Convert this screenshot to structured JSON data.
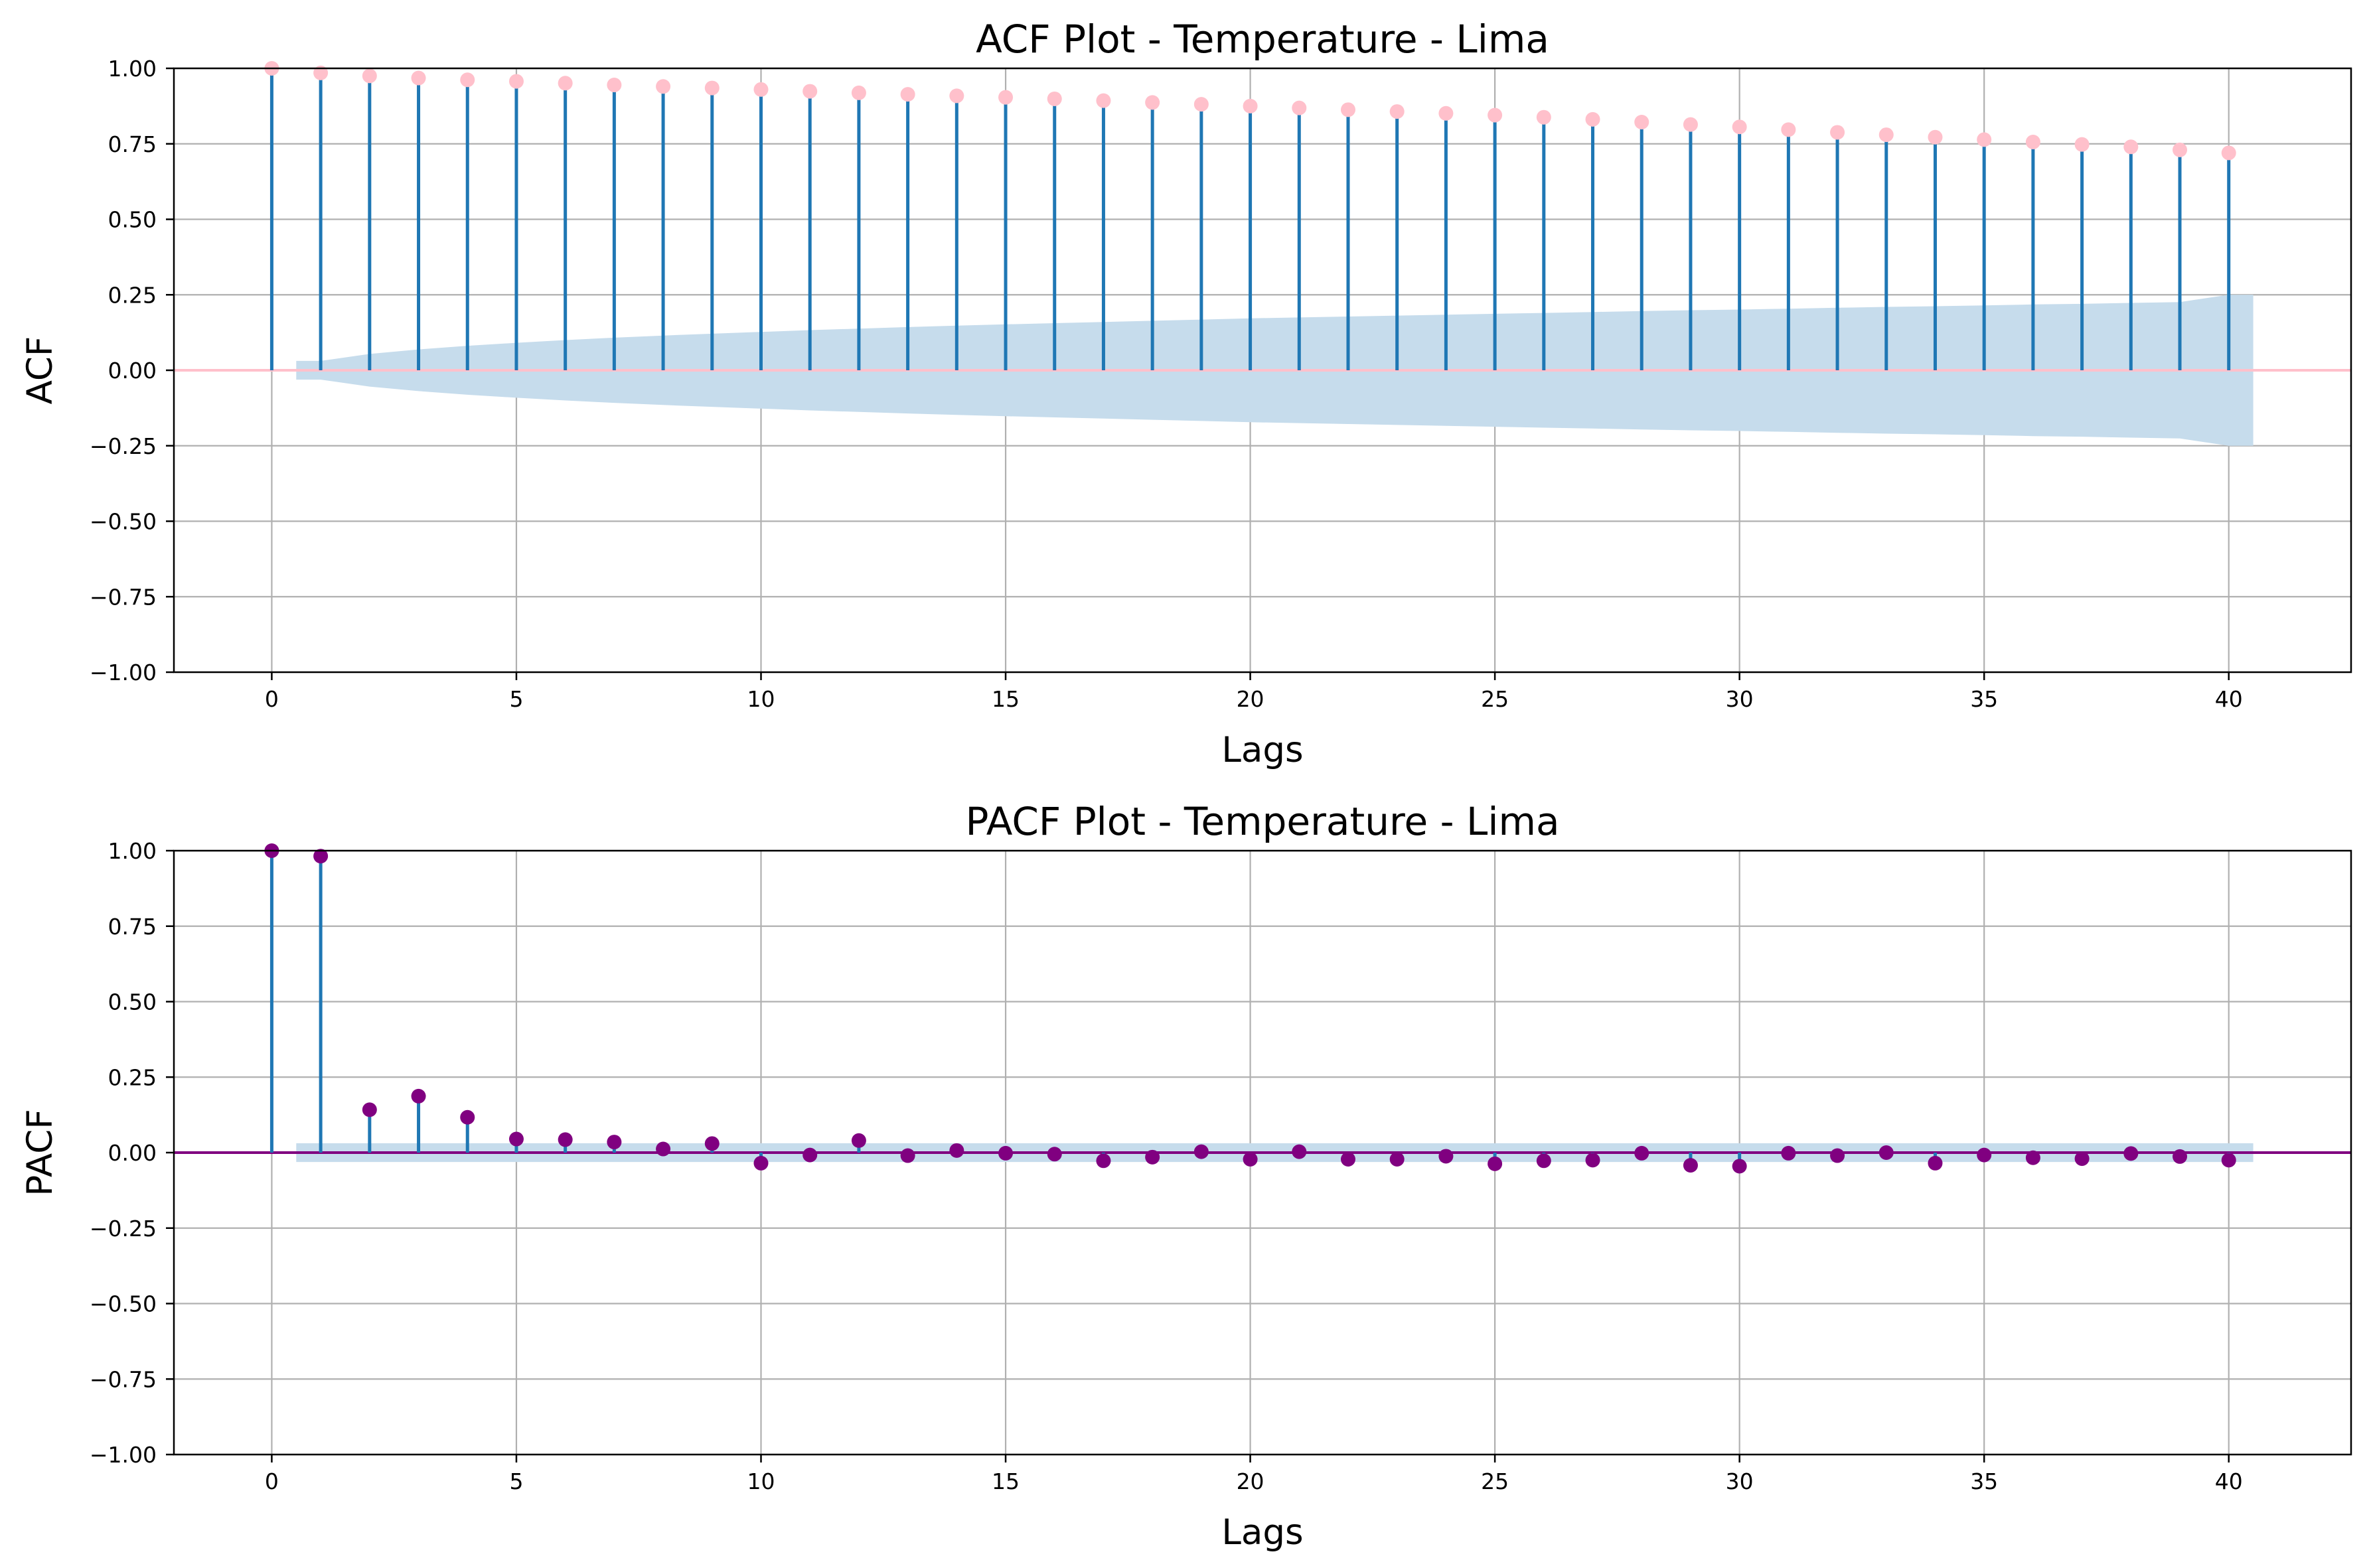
{
  "chart_data": [
    {
      "type": "stem",
      "title": "ACF Plot - Temperature - Lima",
      "xlabel": "Lags",
      "ylabel": "ACF",
      "xlim": [
        -2,
        42.5
      ],
      "ylim": [
        -1.0,
        1.0
      ],
      "xticks": [
        0,
        5,
        10,
        15,
        20,
        25,
        30,
        35,
        40
      ],
      "yticks": [
        -1.0,
        -0.75,
        -0.5,
        -0.25,
        0.0,
        0.25,
        0.5,
        0.75,
        1.0
      ],
      "ytick_labels": [
        "−1.00",
        "−0.75",
        "−0.50",
        "−0.25",
        "0.00",
        "0.25",
        "0.50",
        "0.75",
        "1.00"
      ],
      "grid": true,
      "x": [
        0,
        1,
        2,
        3,
        4,
        5,
        6,
        7,
        8,
        9,
        10,
        11,
        12,
        13,
        14,
        15,
        16,
        17,
        18,
        19,
        20,
        21,
        22,
        23,
        24,
        25,
        26,
        27,
        28,
        29,
        30,
        31,
        32,
        33,
        34,
        35,
        36,
        37,
        38,
        39,
        40
      ],
      "values": [
        1.0,
        0.985,
        0.975,
        0.968,
        0.962,
        0.957,
        0.951,
        0.945,
        0.94,
        0.935,
        0.93,
        0.924,
        0.919,
        0.914,
        0.909,
        0.904,
        0.899,
        0.893,
        0.887,
        0.881,
        0.875,
        0.869,
        0.863,
        0.857,
        0.851,
        0.845,
        0.838,
        0.831,
        0.822,
        0.814,
        0.806,
        0.797,
        0.788,
        0.78,
        0.772,
        0.764,
        0.756,
        0.748,
        0.74,
        0.73,
        0.72
      ],
      "confidence_band": {
        "x": [
          0.5,
          1,
          2,
          3,
          4,
          5,
          6,
          7,
          8,
          9,
          10,
          11,
          12,
          13,
          14,
          15,
          16,
          17,
          18,
          19,
          20,
          21,
          22,
          23,
          24,
          25,
          26,
          27,
          28,
          29,
          30,
          31,
          32,
          33,
          34,
          35,
          36,
          37,
          38,
          39,
          40,
          40.5
        ],
        "upper": [
          0.031,
          0.031,
          0.054,
          0.069,
          0.081,
          0.091,
          0.1,
          0.108,
          0.115,
          0.121,
          0.127,
          0.133,
          0.138,
          0.143,
          0.148,
          0.152,
          0.156,
          0.16,
          0.164,
          0.168,
          0.172,
          0.175,
          0.178,
          0.181,
          0.184,
          0.187,
          0.19,
          0.193,
          0.196,
          0.199,
          0.201,
          0.204,
          0.207,
          0.21,
          0.212,
          0.215,
          0.218,
          0.22,
          0.223,
          0.226,
          0.25,
          0.25
        ]
      },
      "colors": {
        "stem": "#1f77b4",
        "marker": "#ffc0cb",
        "baseline": "#ffc0cb",
        "band": "#c6dcec"
      }
    },
    {
      "type": "stem",
      "title": "PACF Plot - Temperature - Lima",
      "xlabel": "Lags",
      "ylabel": "PACF",
      "xlim": [
        -2,
        42.5
      ],
      "ylim": [
        -1.0,
        1.0
      ],
      "xticks": [
        0,
        5,
        10,
        15,
        20,
        25,
        30,
        35,
        40
      ],
      "yticks": [
        -1.0,
        -0.75,
        -0.5,
        -0.25,
        0.0,
        0.25,
        0.5,
        0.75,
        1.0
      ],
      "ytick_labels": [
        "−1.00",
        "−0.75",
        "−0.50",
        "−0.25",
        "0.00",
        "0.25",
        "0.50",
        "0.75",
        "1.00"
      ],
      "grid": true,
      "x": [
        0,
        1,
        2,
        3,
        4,
        5,
        6,
        7,
        8,
        9,
        10,
        11,
        12,
        13,
        14,
        15,
        16,
        17,
        18,
        19,
        20,
        21,
        22,
        23,
        24,
        25,
        26,
        27,
        28,
        29,
        30,
        31,
        32,
        33,
        34,
        35,
        36,
        37,
        38,
        39,
        40
      ],
      "values": [
        1.0,
        0.982,
        0.142,
        0.187,
        0.117,
        0.045,
        0.043,
        0.035,
        0.012,
        0.03,
        -0.035,
        -0.008,
        0.04,
        -0.01,
        0.007,
        -0.002,
        -0.005,
        -0.027,
        -0.015,
        0.003,
        -0.022,
        0.003,
        -0.022,
        -0.022,
        -0.012,
        -0.037,
        -0.027,
        -0.025,
        -0.002,
        -0.042,
        -0.045,
        -0.002,
        -0.01,
        0.0,
        -0.035,
        -0.008,
        -0.017,
        -0.02,
        -0.003,
        -0.013,
        -0.025
      ],
      "confidence_band": {
        "x": [
          0.5,
          40.5
        ],
        "upper": [
          0.031,
          0.031
        ]
      },
      "colors": {
        "stem": "#1f77b4",
        "marker": "#800080",
        "baseline": "#800080",
        "band": "#c6dcec"
      }
    }
  ]
}
